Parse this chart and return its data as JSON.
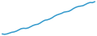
{
  "values": [
    100,
    95,
    100,
    110,
    120,
    125,
    135,
    150,
    165,
    170,
    168,
    175,
    190,
    205,
    215,
    220,
    235,
    255,
    270,
    275,
    285,
    300,
    320,
    335,
    345,
    355,
    370,
    375,
    380,
    395,
    415,
    430,
    440,
    445,
    450,
    465,
    480,
    490,
    488,
    500
  ],
  "line_color": "#3399cc",
  "linewidth": 1.1,
  "background_color": "#ffffff"
}
